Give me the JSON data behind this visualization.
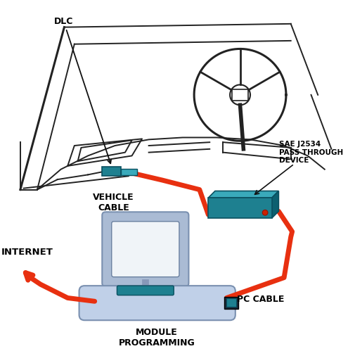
{
  "bg_color": "#ffffff",
  "cable_color": "#e83010",
  "teal_color": "#1e8090",
  "teal_dark": "#0a5060",
  "teal_light": "#3aaabb",
  "car_color": "#222222",
  "monitor_body": "#aabbd4",
  "monitor_body2": "#c0d0e8",
  "monitor_screen": "#e8f0f8",
  "text_color": "#000000",
  "label_dlc": "DLC",
  "label_vehicle_cable": "VEHICLE\nCABLE",
  "label_j2534": "SAE J2534\nPASS THROUGH\nDEVICE",
  "label_internet": "INTERNET",
  "label_pc_cable": "PC CABLE",
  "label_module": "MODULE\nPROGRAMMING"
}
